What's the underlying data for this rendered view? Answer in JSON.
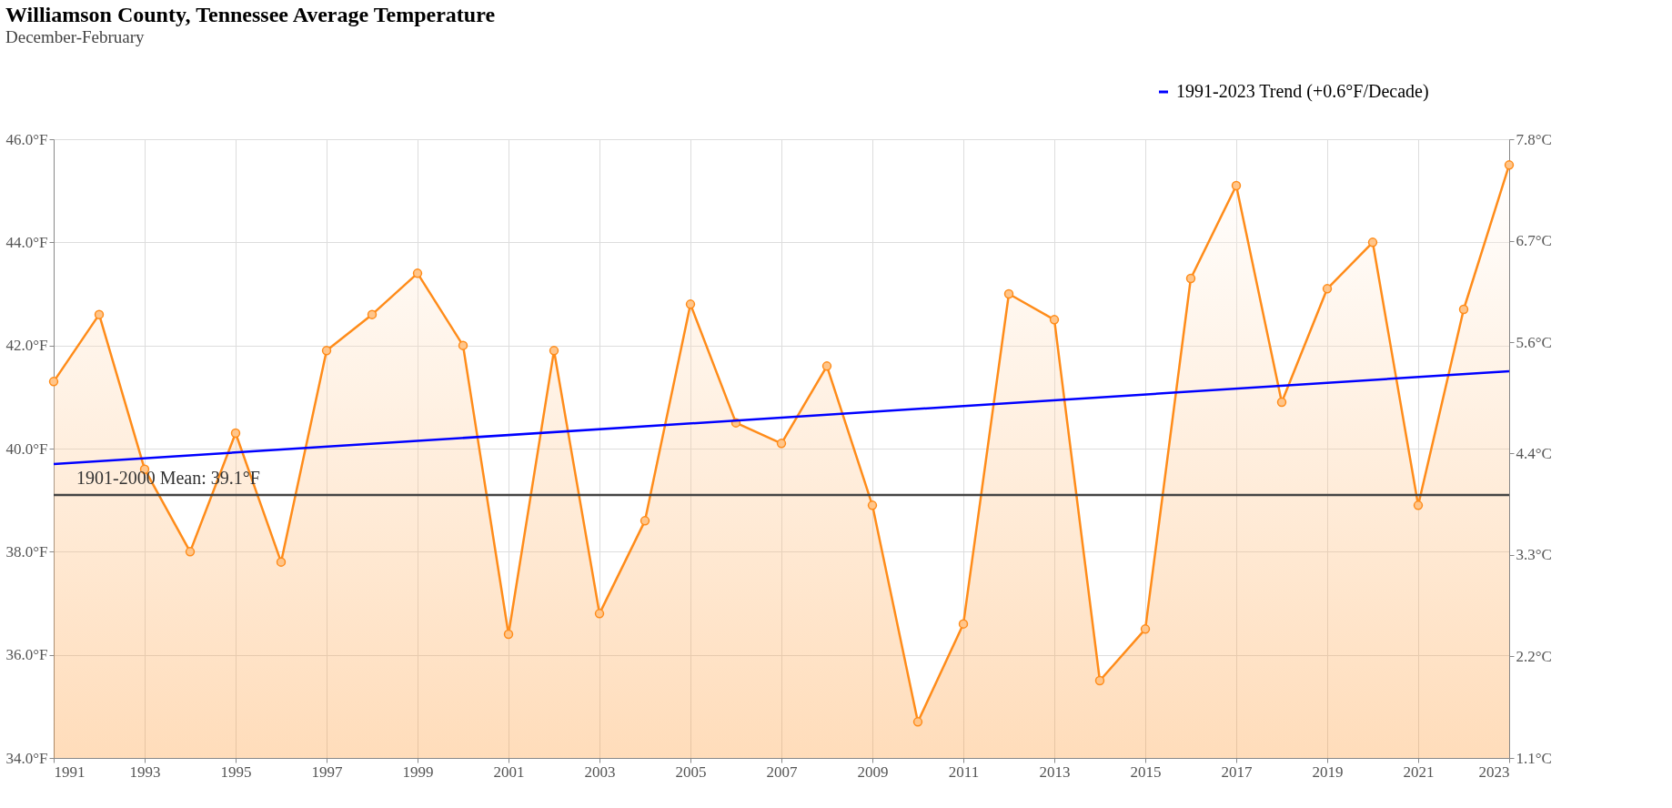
{
  "chart_data": {
    "type": "area",
    "title": "Williamson County, Tennessee Average Temperature",
    "subtitle": "December-February",
    "x": [
      1991,
      1992,
      1993,
      1994,
      1995,
      1996,
      1997,
      1998,
      1999,
      2000,
      2001,
      2002,
      2003,
      2004,
      2005,
      2006,
      2007,
      2008,
      2009,
      2010,
      2011,
      2012,
      2013,
      2014,
      2015,
      2016,
      2017,
      2018,
      2019,
      2020,
      2021,
      2022,
      2023
    ],
    "series": [
      {
        "color": "#ff8c1a",
        "values": [
          41.3,
          42.6,
          39.6,
          38.0,
          40.3,
          37.8,
          41.9,
          42.6,
          43.4,
          42.0,
          36.4,
          41.9,
          36.8,
          38.6,
          42.8,
          40.5,
          40.1,
          41.6,
          38.9,
          34.7,
          36.6,
          43.0,
          42.5,
          35.5,
          36.5,
          43.3,
          45.1,
          40.9,
          43.1,
          44.0,
          38.9,
          42.7,
          45.5
        ]
      },
      {
        "type": "line",
        "name": "1991-2023 Trend (+0.6°F/Decade)",
        "color": "#0000ff",
        "x": [
          1991,
          2023
        ],
        "values": [
          39.7,
          41.5
        ],
        "marker": "none"
      }
    ],
    "xlim": [
      1991,
      2023
    ],
    "xticks": [
      1991,
      1993,
      1995,
      1997,
      1999,
      2001,
      2003,
      2005,
      2007,
      2009,
      2011,
      2013,
      2015,
      2017,
      2019,
      2021,
      2023
    ],
    "ylim": [
      34,
      46
    ],
    "yticks": [
      {
        "value": 34,
        "label": "34.0°F"
      },
      {
        "value": 36,
        "label": "36.0°F"
      },
      {
        "value": 38,
        "label": "38.0°F"
      },
      {
        "value": 40,
        "label": "40.0°F"
      },
      {
        "value": 42,
        "label": "42.0°F"
      },
      {
        "value": 44,
        "label": "44.0°F"
      },
      {
        "value": 46,
        "label": "46.0°F"
      }
    ],
    "y2lim": [
      1.1,
      7.8
    ],
    "y2ticks": [
      {
        "value": 1.1,
        "label": "1.1°C"
      },
      {
        "value": 2.2,
        "label": "2.2°C"
      },
      {
        "value": 3.3,
        "label": "3.3°C"
      },
      {
        "value": 4.4,
        "label": "4.4°C"
      },
      {
        "value": 5.6,
        "label": "5.6°C"
      },
      {
        "value": 6.7,
        "label": "6.7°C"
      },
      {
        "value": 7.8,
        "label": "7.8°C"
      }
    ],
    "ref_lines": [
      {
        "axis": "y",
        "value": 39.1,
        "label": "1901-2000 Mean: 39.1°F",
        "color": "#444444"
      }
    ],
    "marker": "circle",
    "grid": true,
    "legend": "top right"
  }
}
